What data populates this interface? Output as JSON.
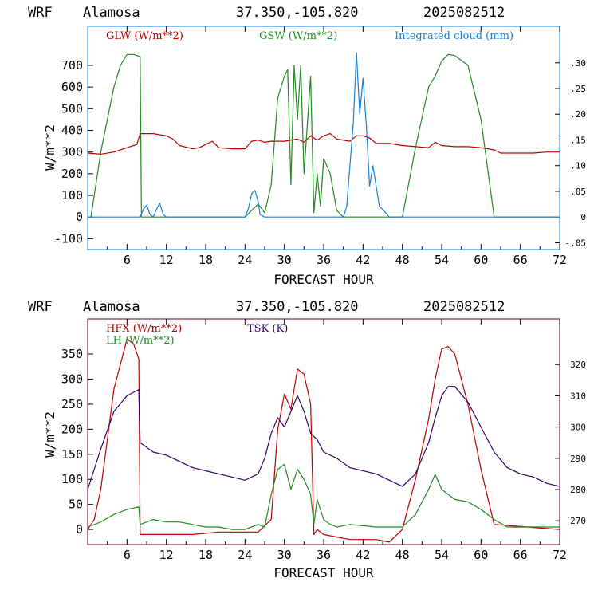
{
  "panels": [
    {
      "title": {
        "model": "WRF",
        "station": "Alamosa",
        "coords": "37.350,-105.820",
        "init": "2025082512"
      },
      "chart_data": {
        "type": "line",
        "xlabel": "FORECAST HOUR",
        "ylabel": "W/m**2",
        "xlim": [
          0,
          72
        ],
        "ylim": [
          -150,
          880
        ],
        "x_ticks": [
          6,
          12,
          18,
          24,
          30,
          36,
          42,
          48,
          54,
          60,
          66,
          72
        ],
        "y_ticks": [
          -100,
          0,
          100,
          200,
          300,
          400,
          500,
          600,
          700
        ],
        "y2lim": [
          -0.0633,
          0.371
        ],
        "y2_ticks": [
          {
            "v": -0.05,
            "label": "-.05"
          },
          {
            "v": 0,
            "label": "0"
          },
          {
            "v": 0.05,
            "label": ".05"
          },
          {
            "v": 0.1,
            "label": ".10"
          },
          {
            "v": 0.15,
            "label": ".15"
          },
          {
            "v": 0.2,
            "label": ".20"
          },
          {
            "v": 0.25,
            "label": ".25"
          },
          {
            "v": 0.3,
            "label": ".30"
          }
        ],
        "series": [
          {
            "name": "GLW (W/m**2)",
            "color": "#bb0000",
            "axis": "left",
            "x": [
              0,
              2,
              4,
              6,
              7.5,
              8,
              10,
              12,
              13,
              14,
              16,
              17,
              18,
              19,
              20,
              22,
              24,
              25,
              26,
              27,
              28,
              30,
              32,
              33,
              34,
              35,
              36,
              37,
              38,
              40,
              41,
              42,
              43,
              44,
              46,
              48,
              50,
              52,
              53,
              54,
              56,
              58,
              60,
              62,
              63,
              64,
              66,
              68,
              70,
              72
            ],
            "y": [
              295,
              290,
              300,
              320,
              335,
              385,
              385,
              375,
              360,
              330,
              315,
              320,
              335,
              350,
              320,
              315,
              315,
              350,
              355,
              345,
              350,
              350,
              360,
              345,
              375,
              355,
              375,
              385,
              360,
              350,
              375,
              375,
              365,
              340,
              340,
              330,
              325,
              320,
              345,
              330,
              325,
              325,
              320,
              310,
              295,
              295,
              295,
              295,
              300,
              300
            ]
          },
          {
            "name": "GSW (W/m**2)",
            "color": "#228822",
            "axis": "left",
            "x": [
              0,
              0.5,
              2,
              4,
              5,
              6,
              7,
              8,
              8.2,
              24,
              25,
              26,
              27,
              28,
              29,
              30,
              30.5,
              31,
              31.5,
              32,
              32.5,
              33,
              34,
              34.5,
              35,
              35.5,
              36,
              37,
              38,
              39,
              40,
              48,
              50,
              52,
              53,
              54,
              55,
              56,
              58,
              60,
              62,
              72
            ],
            "y": [
              0,
              0,
              300,
              600,
              700,
              750,
              750,
              740,
              0,
              0,
              30,
              60,
              20,
              150,
              550,
              650,
              680,
              150,
              700,
              450,
              700,
              200,
              650,
              20,
              200,
              50,
              270,
              200,
              30,
              0,
              0,
              0,
              320,
              600,
              650,
              720,
              750,
              745,
              700,
              450,
              0,
              0
            ]
          },
          {
            "name": "Integrated cloud (mm)",
            "color": "#1a7fd6",
            "axis": "right",
            "x": [
              0,
              8,
              8.5,
              9,
              9.5,
              10,
              10.5,
              11,
              11.5,
              12,
              24,
              24.5,
              25,
              25.5,
              26,
              26.3,
              27,
              39,
              39.5,
              40,
              40.5,
              41,
              41.5,
              42,
              42.5,
              43,
              43.5,
              44,
              44.5,
              45,
              46,
              72
            ],
            "y": [
              0,
              0,
              0.015,
              0.023,
              0.005,
              0,
              0.015,
              0.027,
              0.005,
              0,
              0,
              0.015,
              0.045,
              0.052,
              0.03,
              0.005,
              0,
              0,
              0.02,
              0.1,
              0.18,
              0.32,
              0.2,
              0.27,
              0.18,
              0.06,
              0.1,
              0.06,
              0.02,
              0.015,
              0,
              0
            ]
          }
        ]
      }
    },
    {
      "title": {
        "model": "WRF",
        "station": "Alamosa",
        "coords": "37.350,-105.820",
        "init": "2025082512"
      },
      "chart_data": {
        "type": "line",
        "xlabel": "FORECAST HOUR",
        "ylabel": "W/m**2",
        "xlim": [
          0,
          72
        ],
        "ylim": [
          -30,
          420
        ],
        "x_ticks": [
          6,
          12,
          18,
          24,
          30,
          36,
          42,
          48,
          54,
          60,
          66,
          72
        ],
        "y_ticks": [
          0,
          50,
          100,
          150,
          200,
          250,
          300,
          350
        ],
        "y2lim": [
          262.4,
          334.6
        ],
        "y2_ticks": [
          {
            "v": 270,
            "label": "270"
          },
          {
            "v": 280,
            "label": "280"
          },
          {
            "v": 290,
            "label": "290"
          },
          {
            "v": 300,
            "label": "300"
          },
          {
            "v": 310,
            "label": "310"
          },
          {
            "v": 320,
            "label": "320"
          }
        ],
        "series": [
          {
            "name": "HFX (W/m**2)",
            "color": "#bb0000",
            "axis": "left",
            "x": [
              0,
              1,
              2,
              3,
              4,
              5,
              6,
              7,
              7.8,
              8,
              12,
              16,
              20,
              24,
              26,
              28,
              29,
              30,
              31,
              32,
              33,
              34,
              34.5,
              35,
              36,
              38,
              40,
              42,
              44,
              46,
              48,
              50,
              52,
              53,
              54,
              55,
              56,
              58,
              60,
              62,
              72
            ],
            "y": [
              0,
              20,
              80,
              180,
              280,
              330,
              380,
              370,
              340,
              -10,
              -10,
              -10,
              -5,
              -5,
              -5,
              20,
              200,
              270,
              240,
              320,
              310,
              250,
              -10,
              0,
              -10,
              -15,
              -20,
              -20,
              -20,
              -25,
              0,
              100,
              220,
              300,
              360,
              365,
              350,
              250,
              120,
              10,
              0
            ]
          },
          {
            "name": "LH (W/m**2)",
            "color": "#228822",
            "axis": "left",
            "x": [
              0,
              2,
              4,
              6,
              7.8,
              8,
              10,
              12,
              14,
              16,
              18,
              20,
              22,
              24,
              26,
              27,
              28,
              29,
              30,
              31,
              32,
              33,
              34,
              34.5,
              35,
              36,
              37,
              38,
              40,
              44,
              48,
              50,
              52,
              53,
              54,
              55,
              56,
              58,
              60,
              62,
              64,
              72
            ],
            "y": [
              5,
              15,
              30,
              40,
              45,
              10,
              20,
              15,
              15,
              10,
              5,
              5,
              0,
              0,
              10,
              5,
              70,
              120,
              130,
              80,
              120,
              100,
              70,
              10,
              60,
              20,
              10,
              5,
              10,
              5,
              5,
              30,
              80,
              110,
              80,
              70,
              60,
              55,
              40,
              20,
              5,
              5
            ]
          },
          {
            "name": "TSK (K)",
            "color": "#330066",
            "axis": "right",
            "x": [
              0,
              2,
              4,
              6,
              7.8,
              8,
              10,
              12,
              14,
              16,
              18,
              20,
              22,
              24,
              26,
              27,
              28,
              29,
              30,
              31,
              32,
              33,
              34,
              35,
              36,
              38,
              40,
              44,
              48,
              50,
              52,
              53,
              54,
              55,
              56,
              58,
              60,
              62,
              64,
              66,
              68,
              70,
              72
            ],
            "y": [
              280,
              293,
              305,
              310,
              312,
              295,
              292,
              291,
              289,
              287,
              286,
              285,
              284,
              283,
              285,
              290,
              298,
              303,
              300,
              305,
              310,
              305,
              298,
              296,
              292,
              290,
              287,
              285,
              281,
              285,
              295,
              303,
              310,
              313,
              313,
              308,
              300,
              292,
              287,
              285,
              284,
              282,
              281
            ]
          }
        ]
      }
    }
  ]
}
